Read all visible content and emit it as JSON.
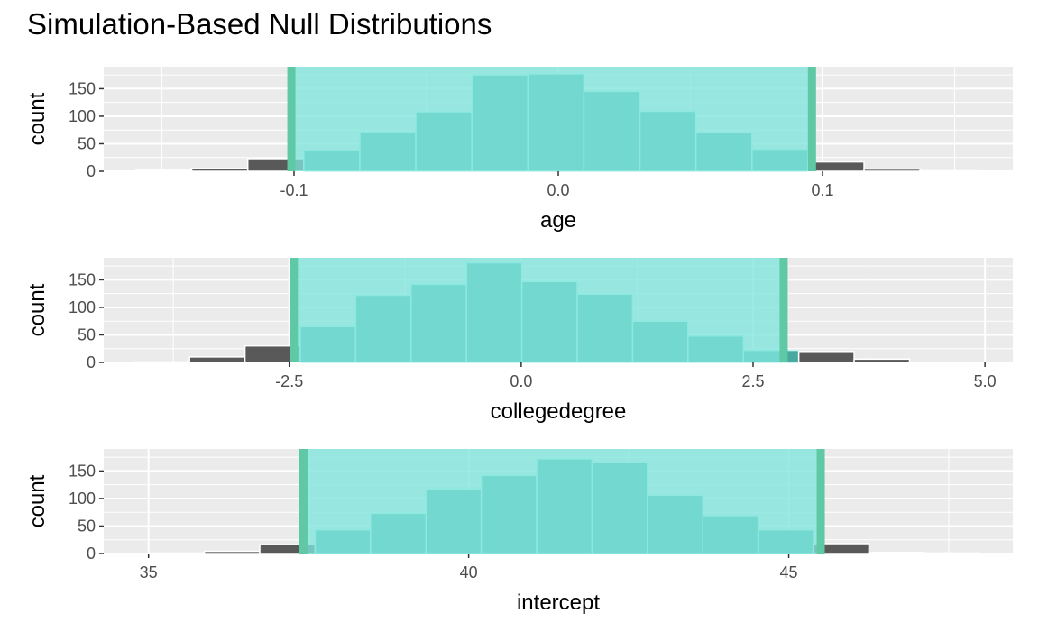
{
  "title": "Simulation-Based Null Distributions",
  "colors": {
    "panel_bg": "#ebebeb",
    "grid": "#ffffff",
    "bar_outside": "#595959",
    "bar_inside": "#4aa8a0",
    "bar_outline": "#ffffff",
    "shade": "#7fe6dc",
    "shade_edge": "#5fc9a6"
  },
  "chart_data": [
    {
      "type": "bar",
      "xlabel": "age",
      "ylabel": "count",
      "xlim": [
        -0.172,
        0.172
      ],
      "ylim": [
        0,
        190
      ],
      "yticks": [
        0,
        50,
        100,
        150
      ],
      "xticks": [
        {
          "value": -0.1,
          "label": "-0.1"
        },
        {
          "value": 0.0,
          "label": "0.0"
        },
        {
          "value": 0.1,
          "label": "0.1"
        }
      ],
      "bin_width": 0.0212,
      "bin_centers": [
        -0.1493,
        -0.1281,
        -0.1069,
        -0.0857,
        -0.0645,
        -0.0433,
        -0.0221,
        -0.0009,
        0.0203,
        0.0415,
        0.0627,
        0.0839,
        0.1051,
        0.1263,
        0.1475
      ],
      "counts": [
        2,
        5,
        23,
        38,
        71,
        108,
        175,
        177,
        145,
        109,
        70,
        40,
        17,
        4,
        1
      ],
      "ci": [
        -0.101,
        0.096
      ]
    },
    {
      "type": "bar",
      "xlabel": "collegedegree",
      "ylabel": "count",
      "xlim": [
        -4.5,
        5.3
      ],
      "ylim": [
        0,
        190
      ],
      "yticks": [
        0,
        50,
        100,
        150
      ],
      "xticks": [
        {
          "value": -2.5,
          "label": "-2.5"
        },
        {
          "value": 0.0,
          "label": "0.0"
        },
        {
          "value": 2.5,
          "label": "2.5"
        },
        {
          "value": 5.0,
          "label": "5.0"
        }
      ],
      "bin_width": 0.597,
      "bin_centers": [
        -3.873,
        -3.276,
        -2.679,
        -2.082,
        -1.485,
        -0.888,
        -0.291,
        0.306,
        0.903,
        1.5,
        2.097,
        2.694,
        3.291,
        3.888,
        4.485
      ],
      "counts": [
        1,
        10,
        30,
        65,
        122,
        142,
        181,
        147,
        124,
        75,
        48,
        22,
        20,
        6,
        0
      ],
      "ci": [
        -2.45,
        2.83
      ]
    },
    {
      "type": "bar",
      "xlabel": "intercept",
      "ylabel": "count",
      "xlim": [
        34.3,
        48.5
      ],
      "ylim": [
        0,
        190
      ],
      "yticks": [
        0,
        50,
        100,
        150
      ],
      "xticks": [
        {
          "value": 35,
          "label": "35"
        },
        {
          "value": 40,
          "label": "40"
        },
        {
          "value": 45,
          "label": "45"
        }
      ],
      "bin_width": 0.865,
      "bin_centers": [
        35.44,
        36.305,
        37.17,
        38.035,
        38.9,
        39.765,
        40.63,
        41.495,
        42.36,
        43.225,
        44.09,
        44.955,
        45.82,
        46.685,
        47.55
      ],
      "counts": [
        1,
        4,
        16,
        43,
        73,
        117,
        142,
        172,
        165,
        106,
        69,
        43,
        18,
        2,
        1
      ],
      "ci": [
        37.42,
        45.5
      ]
    }
  ]
}
